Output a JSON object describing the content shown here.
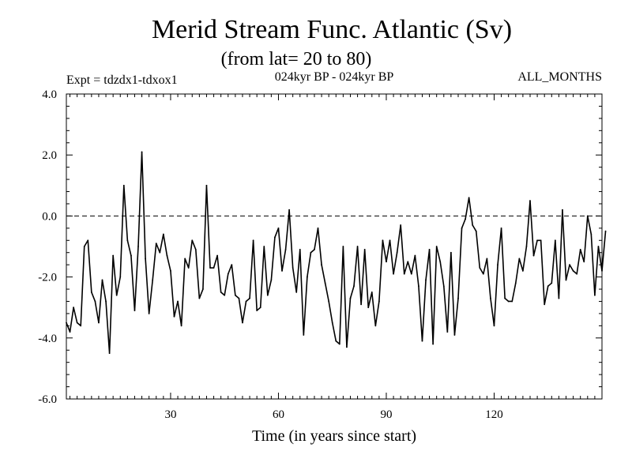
{
  "chart_data": {
    "type": "line",
    "title": "Merid Stream Func. Atlantic (Sv)",
    "subtitle": "(from lat= 20 to 80)",
    "left_label": "Expt = tdzdx1-tdxox1",
    "center_label": "024kyr BP - 024kyr BP",
    "right_label": "ALL_MONTHS",
    "xlabel": "Time (in years since start)",
    "ylabel": "",
    "xlim": [
      1,
      150
    ],
    "ylim": [
      -6,
      4
    ],
    "x_ticks": [
      30,
      60,
      90,
      120
    ],
    "x_tick_labels": [
      "30",
      "60",
      "90",
      "120"
    ],
    "y_ticks": [
      -6,
      -4,
      -2,
      0,
      2,
      4
    ],
    "y_tick_labels": [
      "-6.0",
      "-4.0",
      "-2.0",
      "0.0",
      "2.0",
      "4.0"
    ],
    "reference_line": 0,
    "x_start": 1,
    "x_step": 1,
    "values": [
      -3.5,
      -3.8,
      -3.0,
      -3.5,
      -3.6,
      -1.0,
      -0.8,
      -2.5,
      -2.8,
      -3.5,
      -2.1,
      -2.8,
      -4.5,
      -1.3,
      -2.6,
      -2.0,
      1.0,
      -0.8,
      -1.3,
      -3.1,
      -1.0,
      2.1,
      -1.4,
      -3.2,
      -2.1,
      -0.9,
      -1.2,
      -0.6,
      -1.3,
      -1.8,
      -3.3,
      -2.8,
      -3.6,
      -1.4,
      -1.7,
      -0.8,
      -1.1,
      -2.7,
      -2.4,
      1.0,
      -1.7,
      -1.7,
      -1.3,
      -2.5,
      -2.6,
      -1.9,
      -1.6,
      -2.6,
      -2.7,
      -3.5,
      -2.8,
      -2.7,
      -0.8,
      -3.1,
      -3.0,
      -1.0,
      -2.6,
      -2.1,
      -0.7,
      -0.4,
      -1.8,
      -1.1,
      0.2,
      -1.7,
      -2.5,
      -1.1,
      -3.9,
      -2.0,
      -1.2,
      -1.1,
      -0.4,
      -1.6,
      -2.2,
      -2.8,
      -3.5,
      -4.1,
      -4.2,
      -1.0,
      -4.3,
      -2.7,
      -2.3,
      -1.0,
      -2.9,
      -1.1,
      -3.0,
      -2.5,
      -3.6,
      -2.8,
      -0.8,
      -1.5,
      -0.8,
      -1.9,
      -1.2,
      -0.3,
      -1.9,
      -1.5,
      -1.9,
      -1.3,
      -2.3,
      -4.1,
      -2.1,
      -1.1,
      -4.2,
      -1.0,
      -1.5,
      -2.3,
      -3.8,
      -1.2,
      -3.9,
      -2.7,
      -0.4,
      -0.1,
      0.6,
      -0.3,
      -0.5,
      -1.7,
      -1.9,
      -1.4,
      -2.7,
      -3.6,
      -1.6,
      -0.4,
      -2.7,
      -2.8,
      -2.8,
      -2.2,
      -1.4,
      -1.8,
      -1.0,
      0.5,
      -1.3,
      -0.8,
      -0.8,
      -2.9,
      -2.3,
      -2.2,
      -0.8,
      -2.7,
      0.2,
      -2.1,
      -1.6,
      -1.8,
      -1.9,
      -1.1,
      -1.5,
      0.0,
      -0.6,
      -2.6,
      -1.0,
      -1.8,
      -0.5
    ]
  }
}
